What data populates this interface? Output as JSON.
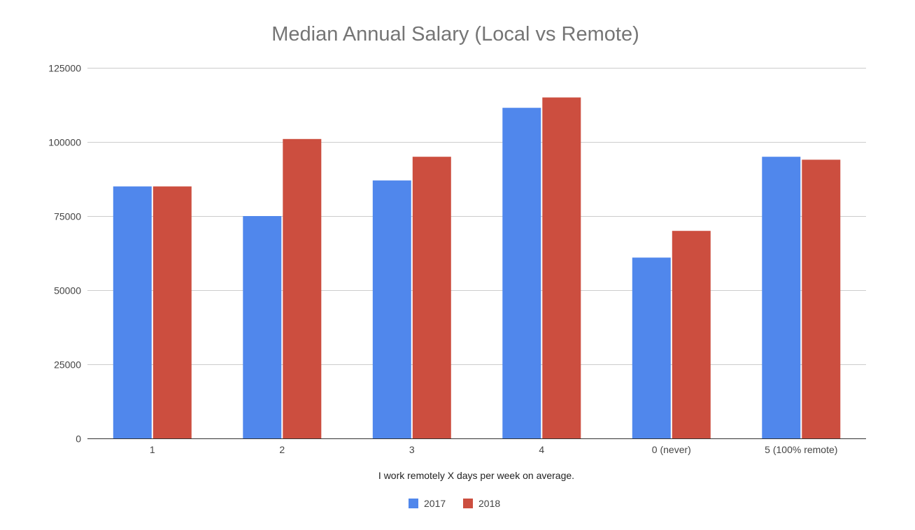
{
  "chart_data": {
    "type": "bar",
    "title": "Median Annual Salary (Local vs Remote)",
    "xlabel": "I work remotely X days per week on average.",
    "ylabel": "",
    "categories": [
      "1",
      "2",
      "3",
      "4",
      "0 (never)",
      "5 (100% remote)"
    ],
    "series": [
      {
        "name": "2017",
        "color": "#5087ec",
        "values": [
          85000,
          75000,
          87000,
          111500,
          61000,
          95000
        ]
      },
      {
        "name": "2018",
        "color": "#cc4e3f",
        "values": [
          85000,
          101000,
          95000,
          115000,
          70000,
          94000
        ]
      }
    ],
    "ylim": [
      0,
      125000
    ],
    "yticks": [
      0,
      25000,
      50000,
      75000,
      100000,
      125000
    ],
    "ytick_labels": [
      "0",
      "25000",
      "50000",
      "75000",
      "100000",
      "125000"
    ],
    "grid": true,
    "legend_position": "bottom"
  }
}
